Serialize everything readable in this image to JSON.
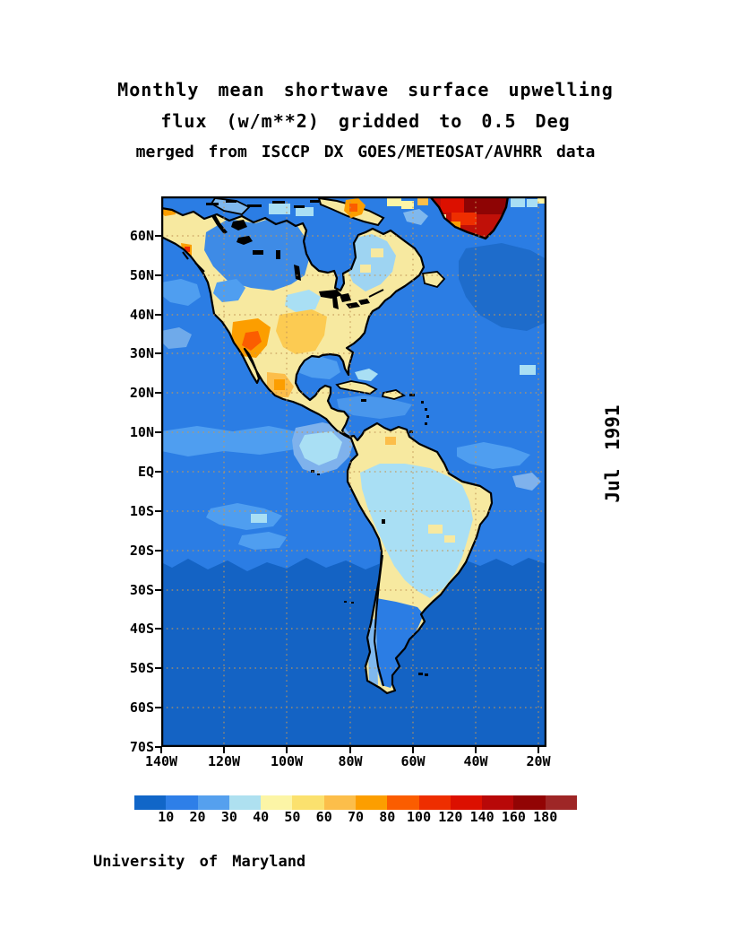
{
  "title": {
    "line1": "Monthly mean shortwave surface upwelling",
    "line2": "flux (w/m**2) gridded to 0.5 Deg",
    "line3": "merged from ISCCP DX GOES/METEOSAT/AVHRR data"
  },
  "date_label": "Jul 1991",
  "credit": "University of Maryland",
  "map": {
    "lat_labels": [
      "60N",
      "50N",
      "40N",
      "30N",
      "20N",
      "10N",
      "EQ",
      "10S",
      "20S",
      "30S",
      "40S",
      "50S",
      "60S",
      "70S"
    ],
    "lon_labels": [
      "140W",
      "120W",
      "100W",
      "80W",
      "60W",
      "40W",
      "20W"
    ]
  },
  "colorbar": {
    "tick_labels": [
      "10",
      "20",
      "30",
      "40",
      "50",
      "60",
      "70",
      "80",
      "100",
      "120",
      "140",
      "160",
      "180"
    ],
    "colors": [
      "#1166C8",
      "#2E7FE8",
      "#55A0EE",
      "#AEE0F0",
      "#FCF5A6",
      "#FBE16E",
      "#FCBE4A",
      "#FC9E00",
      "#FB5D00",
      "#EE2E00",
      "#DC1000",
      "#B80808",
      "#920404",
      "#9E2626"
    ],
    "palette_notes": {
      "ocean_blue": "#2B7DE4",
      "south_ocean_dark_blue": "#1463C4",
      "land_clear_yellow": "#F7E9A0",
      "cloud_light_cyan": "#A9DFF4",
      "greenland_dark_red": "#C01008"
    }
  }
}
